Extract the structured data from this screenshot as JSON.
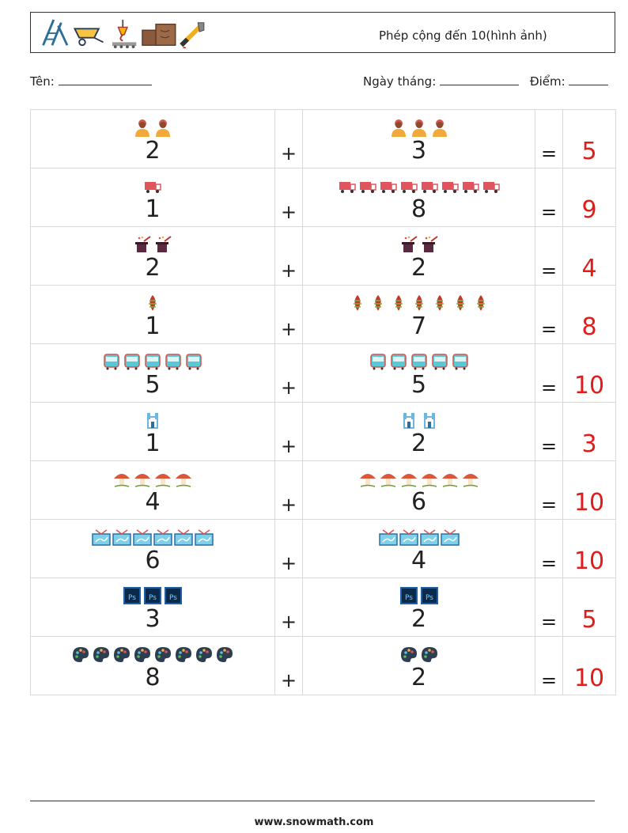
{
  "header": {
    "title": "Phép cộng đến 10(hình ảnh)",
    "icons": [
      "ladder-icon",
      "wheelbarrow-icon",
      "crane-hook-icon",
      "wood-planks-icon",
      "wrench-icon"
    ]
  },
  "meta": {
    "name_label": "Tên:",
    "date_label": "Ngày tháng:",
    "score_label": "Điểm:"
  },
  "operators": {
    "plus": "+",
    "equals": "="
  },
  "rows": [
    {
      "icon": "worker",
      "a": 2,
      "b": 3,
      "result": 5,
      "color": "#f2a93b"
    },
    {
      "icon": "truck",
      "a": 1,
      "b": 8,
      "result": 9,
      "color": "#e0555d"
    },
    {
      "icon": "magic-hat",
      "a": 2,
      "b": 2,
      "result": 4,
      "color": "#5b2a40"
    },
    {
      "icon": "pinecone",
      "a": 1,
      "b": 7,
      "result": 8,
      "color": "#c0392b"
    },
    {
      "icon": "bus",
      "a": 5,
      "b": 5,
      "result": 10,
      "color": "#5bc8d6"
    },
    {
      "icon": "castle",
      "a": 1,
      "b": 2,
      "result": 3,
      "color": "#6cb7e0"
    },
    {
      "icon": "mushroom",
      "a": 4,
      "b": 6,
      "result": 10,
      "color": "#d9573b"
    },
    {
      "icon": "map-board",
      "a": 6,
      "b": 4,
      "result": 10,
      "color": "#7fd0e8"
    },
    {
      "icon": "ps-logo",
      "a": 3,
      "b": 2,
      "result": 5,
      "color": "#1f5fa8"
    },
    {
      "icon": "palette",
      "a": 8,
      "b": 2,
      "result": 10,
      "color": "#2c3e50"
    }
  ],
  "footer": {
    "url": "www.snowmath.com"
  }
}
